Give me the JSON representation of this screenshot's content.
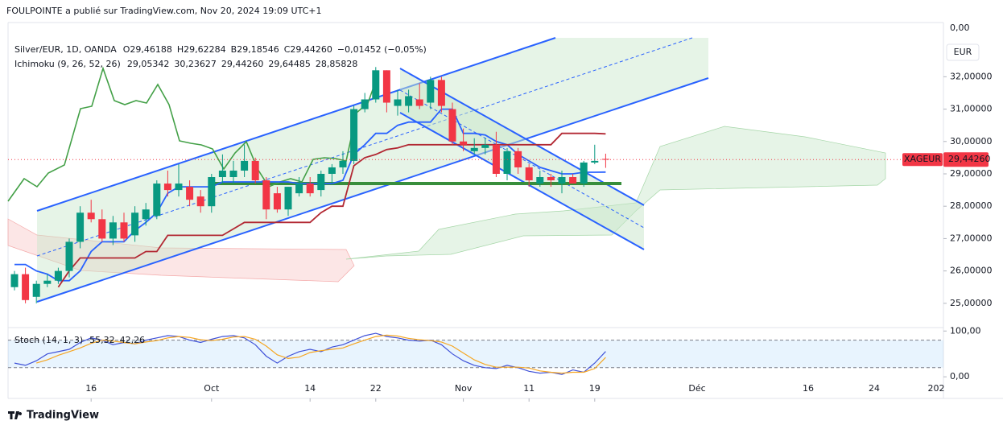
{
  "header": {
    "publisher": "FOULPOINTE a publié sur TradingView.com, Nov 20, 2024 19:09 UTC+1",
    "brand": "TradingView",
    "currency": "EUR"
  },
  "chart_data": [
    {
      "type": "candlestick",
      "title": "Silver/EUR, 1D, OANDA",
      "ohlc_labels": [
        "O29,46188",
        "H29,62284",
        "B29,18546",
        "C29,44260",
        "−0,01452 (−0,05%)"
      ],
      "indicator": {
        "name": "Ichimoku (9, 26, 52, 26)",
        "value_labels": [
          "29,05342",
          "30,23627",
          "29,44260",
          "29,64485",
          "28,85828"
        ]
      },
      "symbol_tag": "XAGEUR",
      "price_tag": "29,44260",
      "corner_label": "0,00",
      "categories": [
        null,
        null,
        null,
        null,
        null,
        null,
        null,
        "16",
        null,
        null,
        null,
        null,
        null,
        null,
        null,
        null,
        null,
        null,
        "Oct",
        null,
        null,
        null,
        null,
        null,
        null,
        null,
        null,
        "14",
        null,
        null,
        null,
        null,
        null,
        "22",
        null,
        null,
        null,
        null,
        null,
        null,
        null,
        "Nov",
        null,
        null,
        null,
        null,
        null,
        "11",
        null,
        null,
        null,
        null,
        null,
        "19",
        null
      ],
      "future_date_labels": [
        "Déc",
        "16",
        "24",
        "202"
      ],
      "open": [
        25.5,
        25.9,
        25.2,
        25.6,
        25.7,
        26.0,
        26.9,
        27.8,
        27.6,
        27.0,
        27.5,
        27.1,
        27.6,
        27.7,
        28.7,
        28.5,
        28.6,
        28.3,
        28.0,
        28.9,
        28.9,
        29.1,
        29.4,
        28.8,
        28.4,
        27.9,
        28.4,
        28.7,
        28.5,
        29.0,
        29.2,
        29.4,
        31.0,
        31.3,
        32.2,
        31.1,
        31.1,
        31.3,
        31.2,
        31.9,
        31.0,
        30.0,
        29.7,
        29.8,
        29.9,
        29.0,
        29.7,
        29.2,
        28.7,
        28.9,
        28.7,
        28.9,
        28.7,
        29.35,
        29.46188
      ],
      "high": [
        26.0,
        26.1,
        25.7,
        25.9,
        26.1,
        27.0,
        28.0,
        28.2,
        27.9,
        27.7,
        27.8,
        28.0,
        28.1,
        28.8,
        29.1,
        29.3,
        28.8,
        28.5,
        29.0,
        29.6,
        29.4,
        29.9,
        29.5,
        28.9,
        28.6,
        28.6,
        28.9,
        28.9,
        29.1,
        29.3,
        29.7,
        31.1,
        31.5,
        32.3,
        32.2,
        31.6,
        31.6,
        31.8,
        32.0,
        32.0,
        31.2,
        30.4,
        30.1,
        30.1,
        30.3,
        29.8,
        29.8,
        29.3,
        29.1,
        29.0,
        29.1,
        29.0,
        29.4,
        29.9,
        29.62284
      ],
      "low": [
        25.4,
        25.0,
        25.0,
        25.5,
        25.6,
        25.8,
        26.7,
        27.5,
        26.9,
        26.8,
        26.9,
        26.9,
        27.4,
        27.6,
        28.3,
        28.3,
        28.0,
        27.8,
        27.8,
        28.7,
        28.7,
        28.9,
        28.7,
        27.6,
        27.8,
        27.7,
        28.3,
        28.3,
        28.3,
        28.7,
        29.0,
        29.3,
        30.9,
        31.2,
        30.9,
        30.8,
        30.9,
        31.0,
        31.0,
        30.9,
        29.9,
        29.7,
        29.6,
        29.6,
        28.9,
        28.8,
        29.0,
        28.6,
        28.6,
        28.6,
        28.4,
        28.7,
        28.6,
        29.3,
        29.18546
      ],
      "close": [
        25.9,
        25.1,
        25.6,
        25.7,
        26.0,
        26.9,
        27.8,
        27.6,
        27.0,
        27.5,
        27.0,
        27.8,
        27.9,
        28.7,
        28.5,
        28.7,
        28.2,
        28.0,
        28.9,
        29.1,
        29.1,
        29.4,
        28.8,
        27.9,
        27.9,
        28.6,
        28.7,
        28.4,
        29.0,
        29.2,
        29.4,
        31.0,
        31.3,
        32.2,
        31.2,
        31.3,
        31.4,
        31.1,
        31.9,
        31.1,
        30.0,
        29.9,
        29.8,
        29.9,
        29.0,
        29.7,
        29.2,
        28.8,
        28.9,
        28.8,
        28.9,
        28.7,
        29.35,
        29.4,
        29.4426
      ],
      "up_color": "#089981",
      "down_color": "#f23645",
      "series": [
        {
          "color": "#2962ff",
          "values": [
            26.2,
            26.2,
            26.0,
            25.9,
            25.7,
            25.7,
            26.0,
            26.6,
            26.9,
            26.9,
            26.9,
            27.25,
            27.5,
            27.8,
            28.4,
            28.6,
            28.6,
            28.6,
            28.6,
            28.75,
            28.75,
            28.75,
            28.75,
            28.75,
            28.75,
            28.75,
            28.7,
            28.7,
            28.7,
            28.7,
            28.8,
            29.6,
            29.9,
            30.25,
            30.25,
            30.5,
            30.6,
            30.6,
            30.6,
            31.0,
            31.0,
            30.25,
            30.25,
            30.2,
            30.0,
            29.9,
            29.6,
            29.4,
            29.2,
            29.1,
            29.0,
            29.0,
            29.05,
            29.05,
            29.05342
          ]
        },
        {
          "color": "#b22833",
          "values": [
            null,
            null,
            null,
            null,
            25.5,
            26.0,
            26.4,
            26.4,
            26.4,
            26.4,
            26.4,
            26.4,
            26.6,
            26.6,
            27.1,
            27.1,
            27.1,
            27.1,
            27.1,
            27.1,
            27.3,
            27.5,
            27.5,
            27.5,
            27.5,
            27.5,
            27.5,
            27.5,
            27.8,
            28.0,
            28.0,
            29.25,
            29.5,
            29.6,
            29.75,
            29.8,
            29.9,
            29.9,
            29.9,
            29.9,
            29.9,
            29.9,
            29.9,
            29.9,
            29.9,
            29.9,
            29.9,
            29.9,
            29.9,
            29.9,
            30.25,
            30.25,
            30.25,
            30.25,
            30.23627
          ]
        }
      ],
      "ylim": [
        24.25,
        33.675
      ],
      "yticks": [
        {
          "value": 25,
          "label": "25,00000"
        },
        {
          "value": 26,
          "label": "26,00000"
        },
        {
          "value": 27,
          "label": "27,00000"
        },
        {
          "value": 28,
          "label": "28,00000"
        },
        {
          "value": 29,
          "label": "29,00000"
        },
        {
          "value": 30,
          "label": "30,00000"
        },
        {
          "value": 31,
          "label": "31,00000"
        },
        {
          "value": 32,
          "label": "32,00000"
        }
      ]
    },
    {
      "type": "line",
      "title": "Stoch (14, 1, 3)",
      "series": [
        {
          "color": "#3f51d8",
          "value_label": "55,32",
          "values": [
            30,
            25,
            35,
            50,
            55,
            60,
            75,
            85,
            80,
            70,
            75,
            72,
            80,
            85,
            90,
            88,
            80,
            75,
            82,
            88,
            90,
            85,
            70,
            45,
            30,
            45,
            55,
            60,
            55,
            65,
            70,
            80,
            90,
            95,
            88,
            85,
            80,
            78,
            80,
            70,
            50,
            35,
            25,
            20,
            18,
            25,
            20,
            12,
            8,
            10,
            5,
            15,
            10,
            30,
            55.32
          ]
        },
        {
          "color": "#f5a623",
          "value_label": "42,26",
          "values": [
            null,
            null,
            30,
            37,
            47,
            55,
            63,
            73,
            80,
            78,
            75,
            72,
            76,
            79,
            85,
            88,
            86,
            81,
            79,
            82,
            87,
            88,
            82,
            67,
            48,
            40,
            43,
            53,
            57,
            60,
            63,
            72,
            80,
            88,
            91,
            89,
            84,
            81,
            79,
            76,
            67,
            52,
            37,
            27,
            21,
            21,
            21,
            19,
            13,
            10,
            8,
            10,
            10,
            18,
            42.26
          ]
        }
      ],
      "bands": [
        20,
        80
      ],
      "ylim": [
        -47.2,
        107.5
      ],
      "yticks": [
        {
          "value": 0,
          "label": "0,00"
        },
        {
          "value": 100,
          "label": "100,00"
        }
      ]
    }
  ]
}
